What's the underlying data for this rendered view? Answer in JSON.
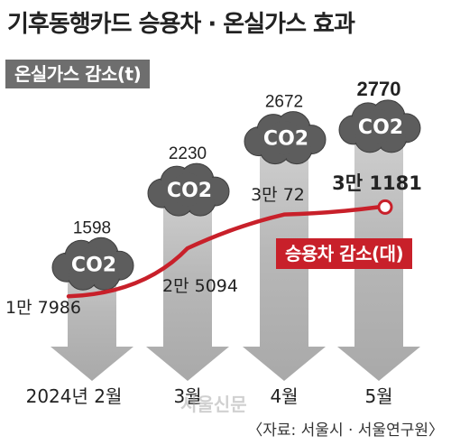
{
  "title": "기후동행카드 승용차 · 온실가스 효과",
  "source": "〈자료: 서울시 · 서울연구원〉",
  "watermark": "서울신문",
  "icon_names": {
    "cloud": "co2-cloud-icon",
    "arrow": "down-arrow-icon"
  },
  "colors": {
    "arrow": "#b8b8b8",
    "line": "#c8202a",
    "cloud": "#5d5d5d",
    "badge_gray": "#6e6e6e",
    "badge_red": "#c8202a"
  },
  "cloud_label": "CO2",
  "chart_data": {
    "type": "bar",
    "categories": [
      "2024년 2월",
      "3월",
      "4월",
      "5월"
    ],
    "series": [
      {
        "name": "온실가스 감소(t)",
        "values": [
          1598,
          2230,
          2672,
          2770
        ],
        "labels": [
          "1598",
          "2230",
          "2672",
          "2770"
        ]
      },
      {
        "name": "승용차 감소(대)",
        "type": "line",
        "values": [
          17986,
          25094,
          30072,
          31181
        ],
        "labels": [
          "1만 7986",
          "2만 5094",
          "3만 72",
          "3만 1181"
        ]
      }
    ]
  }
}
